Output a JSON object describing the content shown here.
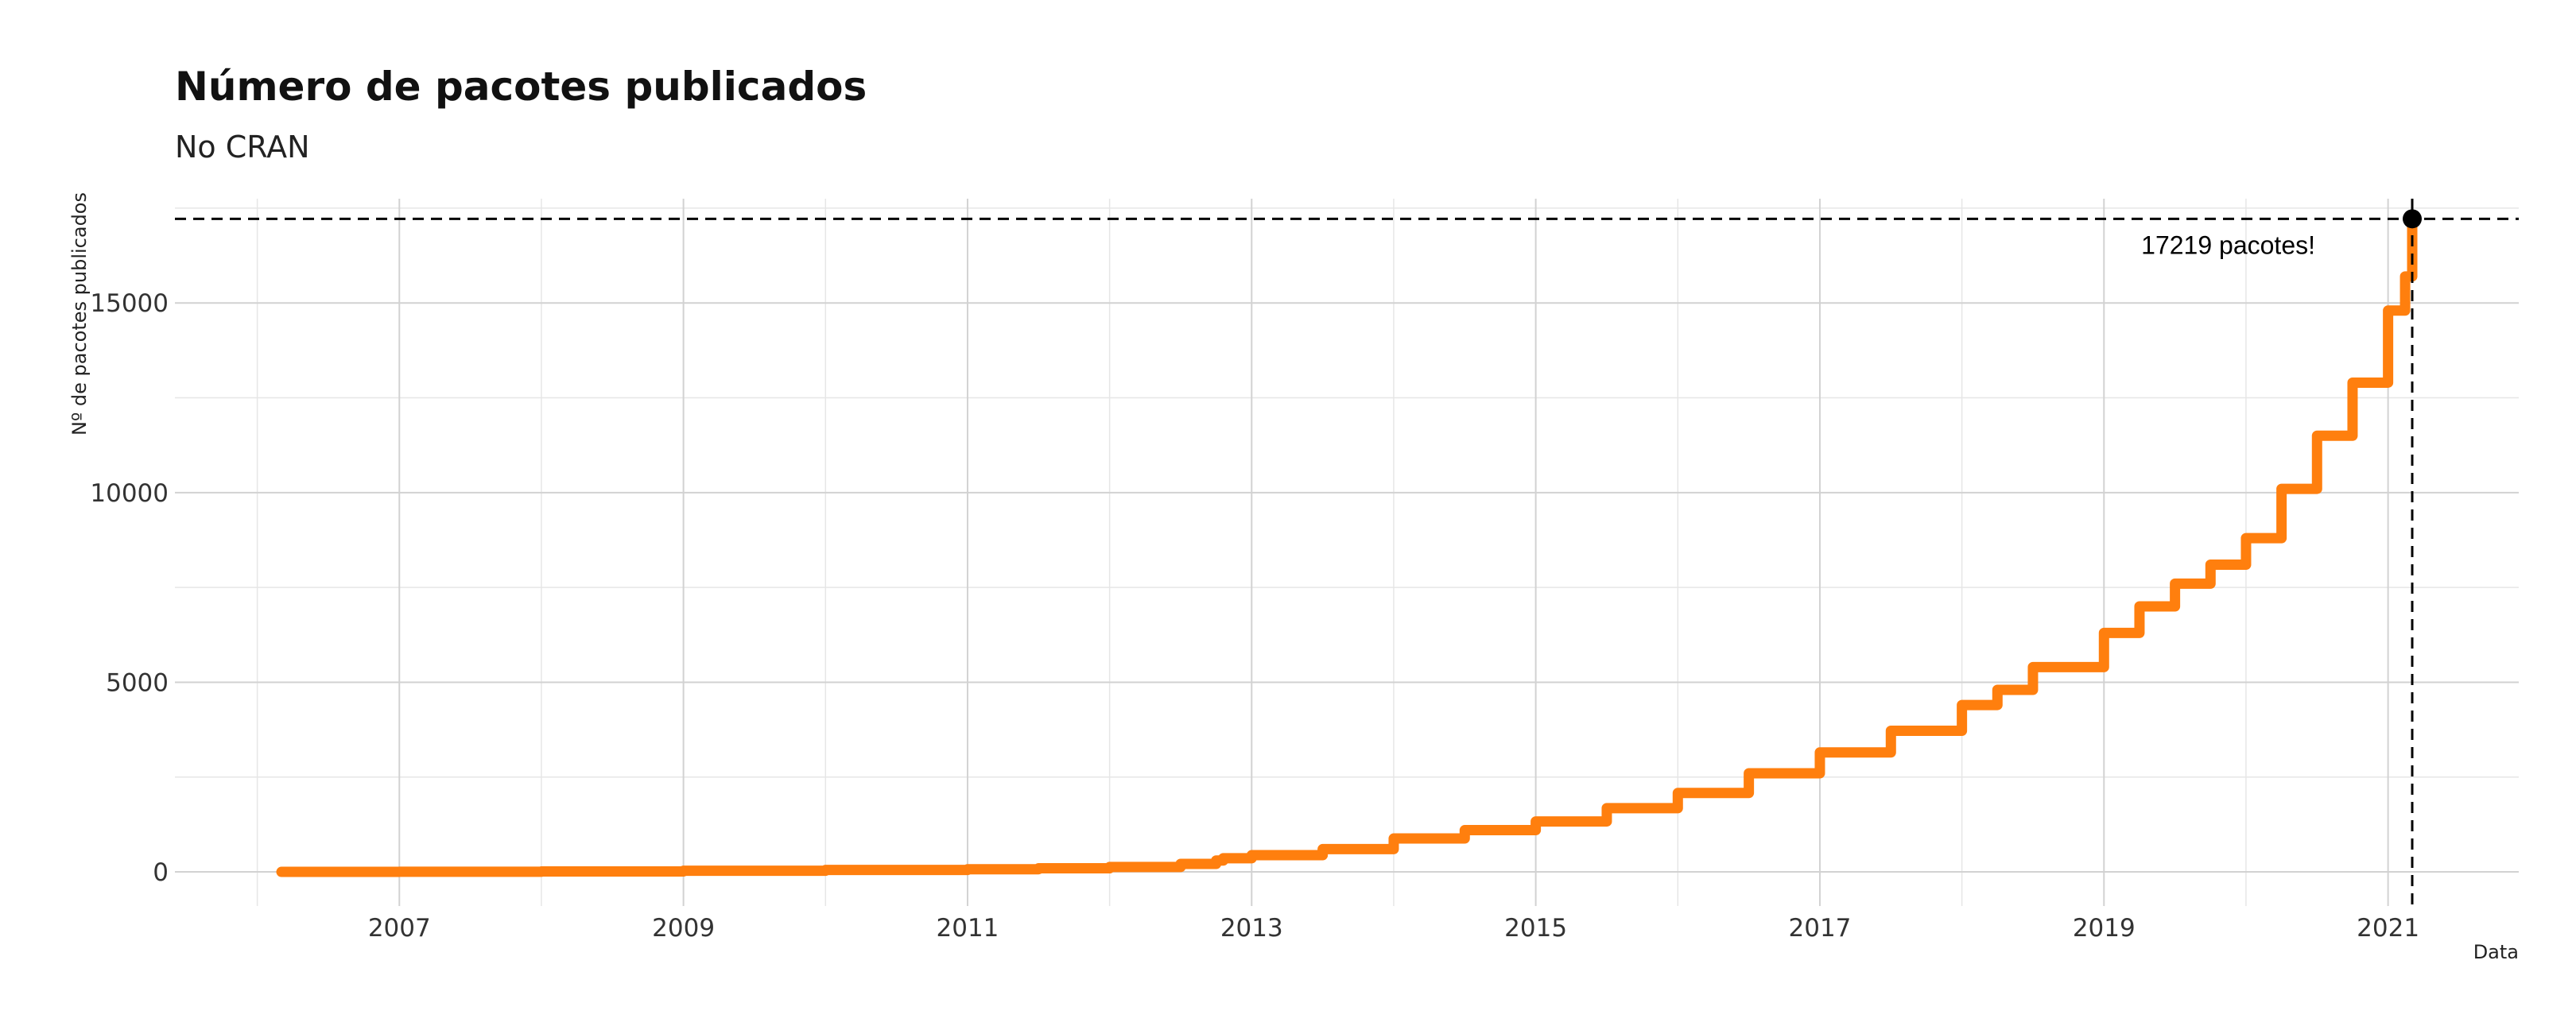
{
  "chart_data": {
    "type": "line",
    "title": "Número de pacotes publicados",
    "subtitle": "No CRAN",
    "xlabel": "Data",
    "ylabel": "Nº de pacotes publicados",
    "line_color": "#FF7F0E",
    "xlim": [
      2005.42,
      2021.92
    ],
    "ylim": [
      -900,
      17750
    ],
    "x_ticks": [
      "2007",
      "2009",
      "2011",
      "2013",
      "2015",
      "2017",
      "2019",
      "2021"
    ],
    "y_ticks": [
      "0",
      "5000",
      "10000",
      "15000"
    ],
    "grid": true,
    "series": [
      {
        "x": [
          2006.17,
          2007.0,
          2008.0,
          2009.0,
          2010.0,
          2011.0,
          2011.5,
          2012.0,
          2012.5,
          2012.75,
          2012.8,
          2013.0,
          2013.5,
          2014.0,
          2014.5,
          2015.0,
          2015.5,
          2016.0,
          2016.5,
          2017.0,
          2017.5,
          2018.0,
          2018.25,
          2018.5,
          2019.0,
          2019.25,
          2019.5,
          2019.75,
          2020.0,
          2020.25,
          2020.5,
          2020.75,
          2021.0,
          2021.12,
          2021.17
        ],
        "y": [
          0,
          3,
          12,
          30,
          50,
          70,
          95,
          130,
          210,
          300,
          360,
          440,
          600,
          880,
          1100,
          1330,
          1680,
          2080,
          2600,
          3150,
          3720,
          4400,
          4800,
          5400,
          6300,
          7000,
          7600,
          8100,
          8800,
          10100,
          11500,
          12900,
          14800,
          15700,
          17219
        ]
      }
    ],
    "reference": {
      "x": 2021.17,
      "y": 17219,
      "label": "17219 pacotes!"
    }
  }
}
